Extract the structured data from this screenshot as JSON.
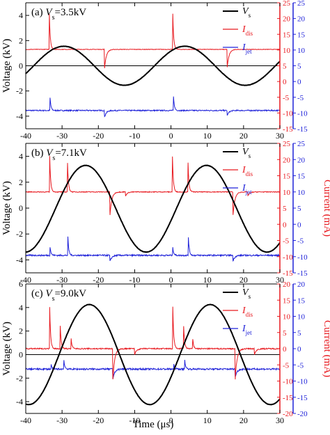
{
  "colors": {
    "voltage": "#000000",
    "discharge": "#e8191f",
    "jet": "#1f22d9"
  },
  "x_axis_label": "Time (μs)",
  "chart_data": [
    {
      "type": "line",
      "panel_label": "(a) ",
      "condition_symbol": "V",
      "condition_subscript": "s",
      "condition_value": "=3.5kV",
      "ylabel": "Voltage (kV)",
      "y2label": "",
      "xlim": [
        -40,
        30
      ],
      "ylim": [
        -5,
        5
      ],
      "y2lim": [
        -15,
        25
      ],
      "x_ticks": [
        "-40",
        "-30",
        "-20",
        "-10",
        "0",
        "10",
        "20",
        "30"
      ],
      "y_ticks": [
        "-4",
        "-2",
        "0",
        "2",
        "4"
      ],
      "y2_ticks": [
        "-15",
        "-10",
        "-5",
        "0",
        "5",
        "10",
        "15",
        "20",
        "25"
      ],
      "hline": 0,
      "legend": [
        {
          "symbol": "V",
          "sub": "s"
        },
        {
          "symbol": "I",
          "sub": "dis"
        },
        {
          "symbol": "I",
          "sub": "jet"
        }
      ],
      "series": [
        {
          "name": "Vs",
          "axis": "left",
          "kind": "sine",
          "amplitude": 1.55,
          "period": 33.3,
          "peak_at": -29.5,
          "offset": 0
        },
        {
          "name": "Idis",
          "axis": "right",
          "kind": "spiky",
          "baseline": 10.2,
          "noise": 0.08,
          "spikes": [
            [
              -33.5,
              21.5
            ],
            [
              0.5,
              21.5
            ]
          ],
          "dips": [
            [
              -18.3,
              4.2
            ],
            [
              15.5,
              4.5
            ]
          ]
        },
        {
          "name": "Ijet",
          "axis": "right",
          "kind": "spiky",
          "baseline": -9.2,
          "noise": 0.18,
          "spikes": [
            [
              -33.3,
              -5.2
            ],
            [
              0.7,
              -4.8
            ]
          ],
          "dips": [
            [
              -18.3,
              -11.3
            ],
            [
              15.5,
              -10.8
            ]
          ]
        }
      ]
    },
    {
      "type": "line",
      "panel_label": "(b) ",
      "condition_symbol": "V",
      "condition_subscript": "s",
      "condition_value": "=7.1kV",
      "ylabel": "Voltage (kV)",
      "y2label": "Current (mA)",
      "xlim": [
        -40,
        30
      ],
      "ylim": [
        -5,
        5
      ],
      "y2lim": [
        -15,
        25
      ],
      "x_ticks": [
        "-40",
        "-30",
        "-20",
        "-10",
        "0",
        "10",
        "20",
        "30"
      ],
      "y_ticks": [
        "-4",
        "-2",
        "0",
        "2",
        "4"
      ],
      "y2_ticks": [
        "-15",
        "-10",
        "-5",
        "0",
        "5",
        "10",
        "15",
        "20",
        "25"
      ],
      "hline": null,
      "legend": [
        {
          "symbol": "V",
          "sub": "s"
        },
        {
          "symbol": "I",
          "sub": "dis"
        },
        {
          "symbol": "I",
          "sub": "jet"
        }
      ],
      "series": [
        {
          "name": "Vs",
          "axis": "left",
          "kind": "sine",
          "amplitude": 3.35,
          "period": 33.3,
          "peak_at": -23.5,
          "offset": -0.05
        },
        {
          "name": "Idis",
          "axis": "right",
          "kind": "spiky",
          "baseline": 10.0,
          "noise": 0.12,
          "spikes": [
            [
              -33.4,
              21.0
            ],
            [
              -28.5,
              19.0
            ],
            [
              0.4,
              21.0
            ],
            [
              4.7,
              19.0
            ]
          ],
          "dips": [
            [
              -16.8,
              2.8
            ],
            [
              -12.5,
              8.8
            ],
            [
              17.1,
              2.8
            ],
            [
              21.2,
              8.8
            ]
          ]
        },
        {
          "name": "Ijet",
          "axis": "right",
          "kind": "spiky",
          "baseline": -9.6,
          "noise": 0.22,
          "spikes": [
            [
              -33.3,
              -7.0
            ],
            [
              -28.4,
              -4.0
            ],
            [
              0.5,
              -7.0
            ],
            [
              4.8,
              -4.0
            ]
          ],
          "dips": [
            [
              -16.8,
              -11.5
            ],
            [
              17.1,
              -11.3
            ]
          ]
        }
      ]
    },
    {
      "type": "line",
      "panel_label": "(c) ",
      "condition_symbol": "V",
      "condition_subscript": "s",
      "condition_value": "=9.0kV",
      "ylabel": "Voltage (kV)",
      "y2label": "Current (mA)",
      "xlim": [
        -40,
        30
      ],
      "ylim": [
        -5,
        6
      ],
      "y2lim": [
        -20,
        20
      ],
      "x_ticks": [
        "-40",
        "-30",
        "-20",
        "-10",
        "0",
        "10",
        "20",
        "30"
      ],
      "y_ticks": [
        "-4",
        "-2",
        "0",
        "2",
        "4",
        "6"
      ],
      "y2_ticks": [
        "-20",
        "-15",
        "-10",
        "-5",
        "0",
        "5",
        "10",
        "15",
        "20"
      ],
      "hline": 0,
      "legend": [
        {
          "symbol": "V",
          "sub": "s"
        },
        {
          "symbol": "I",
          "sub": "dis"
        },
        {
          "symbol": "I",
          "sub": "jet"
        }
      ],
      "series": [
        {
          "name": "Vs",
          "axis": "left",
          "kind": "sine",
          "amplitude": 4.25,
          "period": 33.3,
          "peak_at": -22.5,
          "offset": 0
        },
        {
          "name": "Idis",
          "axis": "right",
          "kind": "spiky",
          "baseline": 0.0,
          "noise": 0.18,
          "spikes": [
            [
              -33.4,
              13.0
            ],
            [
              -30.5,
              7.0
            ],
            [
              -27.5,
              3.0
            ],
            [
              0.5,
              13.0
            ],
            [
              3.5,
              7.0
            ],
            [
              6.0,
              3.0
            ]
          ],
          "dips": [
            [
              -16.0,
              -9.5
            ],
            [
              -10.0,
              -1.8
            ],
            [
              17.7,
              -9.5
            ],
            [
              23.0,
              -1.8
            ]
          ]
        },
        {
          "name": "Ijet",
          "axis": "right",
          "kind": "spiky",
          "baseline": -6.3,
          "noise": 0.25,
          "spikes": [
            [
              -33.0,
              -5.0
            ],
            [
              -29.5,
              -3.5
            ],
            [
              0.8,
              -5.0
            ],
            [
              3.8,
              -3.5
            ]
          ],
          "dips": [
            [
              -16.0,
              -9.3
            ],
            [
              17.7,
              -8.8
            ]
          ]
        }
      ]
    }
  ]
}
